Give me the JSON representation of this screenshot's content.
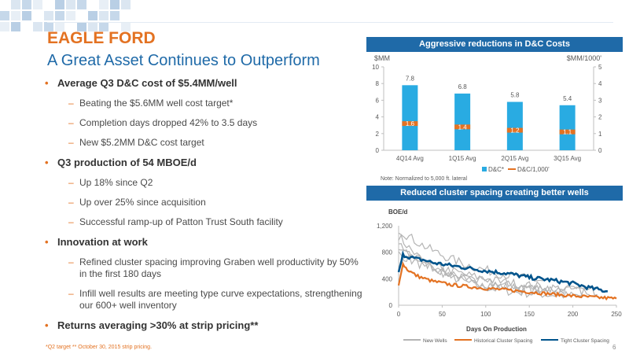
{
  "colors": {
    "orange": "#e37222",
    "blue": "#1f6aa8",
    "bar": "#29abe2",
    "gray": "#b4b4b4",
    "dark_blue": "#00548c"
  },
  "header": {
    "title": "EAGLE FORD",
    "subtitle": "A Great Asset Continues to Outperform"
  },
  "bullets": [
    {
      "text": "Average Q3 D&C cost of $5.4MM/well",
      "sub": [
        "Beating the $5.6MM well cost target*",
        "Completion days dropped 42% to 3.5 days",
        "New $5.2MM D&C cost target"
      ]
    },
    {
      "text": "Q3 production of 54 MBOE/d",
      "sub": [
        "Up 18% since Q2",
        "Up over 25% since acquisition",
        "Successful ramp-up of Patton Trust South facility"
      ]
    },
    {
      "text": "Innovation at work",
      "sub": [
        "Refined cluster spacing improving Graben well productivity by 50% in the first 180 days",
        "Infill well results are meeting type curve expectations, strengthening our 600+ well inventory"
      ]
    },
    {
      "text": "Returns averaging >30% at strip pricing**",
      "sub": []
    }
  ],
  "footnote": "*Q2 target ** October 30, 2015 strip pricing.",
  "page_number": "6",
  "chart_data": [
    {
      "type": "bar",
      "title": "Aggressive reductions in D&C Costs",
      "ylabel_left": "$MM",
      "ylabel_right": "$MM/1000'",
      "categories": [
        "4Q14 Avg",
        "1Q15 Avg",
        "2Q15 Avg",
        "3Q15 Avg"
      ],
      "ylim": [
        0,
        10
      ],
      "ylim_right": [
        0,
        5
      ],
      "yticks_left": [
        "0",
        "2",
        "4",
        "6",
        "8",
        "10"
      ],
      "yticks_right": [
        "0",
        "1",
        "2",
        "3",
        "4",
        "5"
      ],
      "series": [
        {
          "name": "D&C*",
          "axis": "left",
          "values": [
            7.8,
            6.8,
            5.8,
            5.4
          ],
          "labels": [
            "7.8",
            "6.8",
            "5.8",
            "5.4"
          ]
        },
        {
          "name": "D&C/1,000'",
          "axis": "right",
          "values": [
            1.6,
            1.4,
            1.2,
            1.1
          ],
          "labels": [
            "1.6",
            "1.4",
            "1.2",
            "1.1"
          ]
        }
      ],
      "note": "Note:  Normalized to 5,000 ft. lateral",
      "legend_position": "bottom"
    },
    {
      "type": "line",
      "title": "Reduced cluster spacing creating better wells",
      "ylabel": "BOE/d",
      "xlabel": "Days On Production",
      "xlim": [
        0,
        250
      ],
      "ylim": [
        0,
        1200
      ],
      "xticks": [
        "0",
        "50",
        "100",
        "150",
        "200",
        "250"
      ],
      "yticks": [
        "0",
        "400",
        "800",
        "1,200"
      ],
      "series": [
        {
          "name": "New Wells",
          "shape": "noisy decline curves",
          "count": 5
        },
        {
          "name": "Historical Cluster Spacing",
          "x": [
            0,
            5,
            10,
            20,
            30,
            40,
            60,
            80,
            100,
            125,
            150,
            175,
            200,
            225,
            250
          ],
          "y": [
            300,
            620,
            540,
            450,
            400,
            360,
            310,
            280,
            255,
            230,
            200,
            170,
            140,
            120,
            100
          ]
        },
        {
          "name": "Tight Cluster Spacing",
          "x": [
            0,
            5,
            10,
            20,
            30,
            40,
            60,
            80,
            100,
            125,
            150,
            175,
            200,
            220,
            240
          ],
          "y": [
            500,
            760,
            740,
            700,
            680,
            640,
            600,
            560,
            520,
            480,
            420,
            380,
            330,
            260,
            210
          ]
        }
      ],
      "legend_position": "bottom"
    }
  ]
}
